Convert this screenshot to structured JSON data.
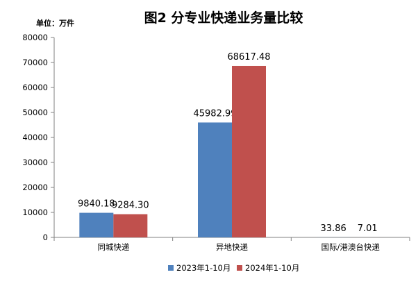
{
  "chart_data": {
    "type": "bar",
    "title": "图2  分专业快递业务量比较",
    "unit_label": "单位：万件",
    "categories": [
      "同城快递",
      "异地快递",
      "国际/港澳台快递"
    ],
    "series": [
      {
        "name": "2023年1-10月",
        "color": "#4F81BD",
        "values": [
          9840.18,
          45982.99,
          33.86
        ],
        "labels": [
          "9840.18",
          "45982.99",
          "33.86"
        ]
      },
      {
        "name": "2024年1-10月",
        "color": "#C0504D",
        "values": [
          9284.3,
          68617.48,
          7.01
        ],
        "labels": [
          "9284.30",
          "68617.48",
          "7.01"
        ]
      }
    ],
    "ylim": [
      0,
      80000
    ],
    "yticks": [
      "0",
      "10000",
      "20000",
      "30000",
      "40000",
      "50000",
      "60000",
      "70000",
      "80000"
    ],
    "legend_position": "bottom",
    "grid": false
  }
}
